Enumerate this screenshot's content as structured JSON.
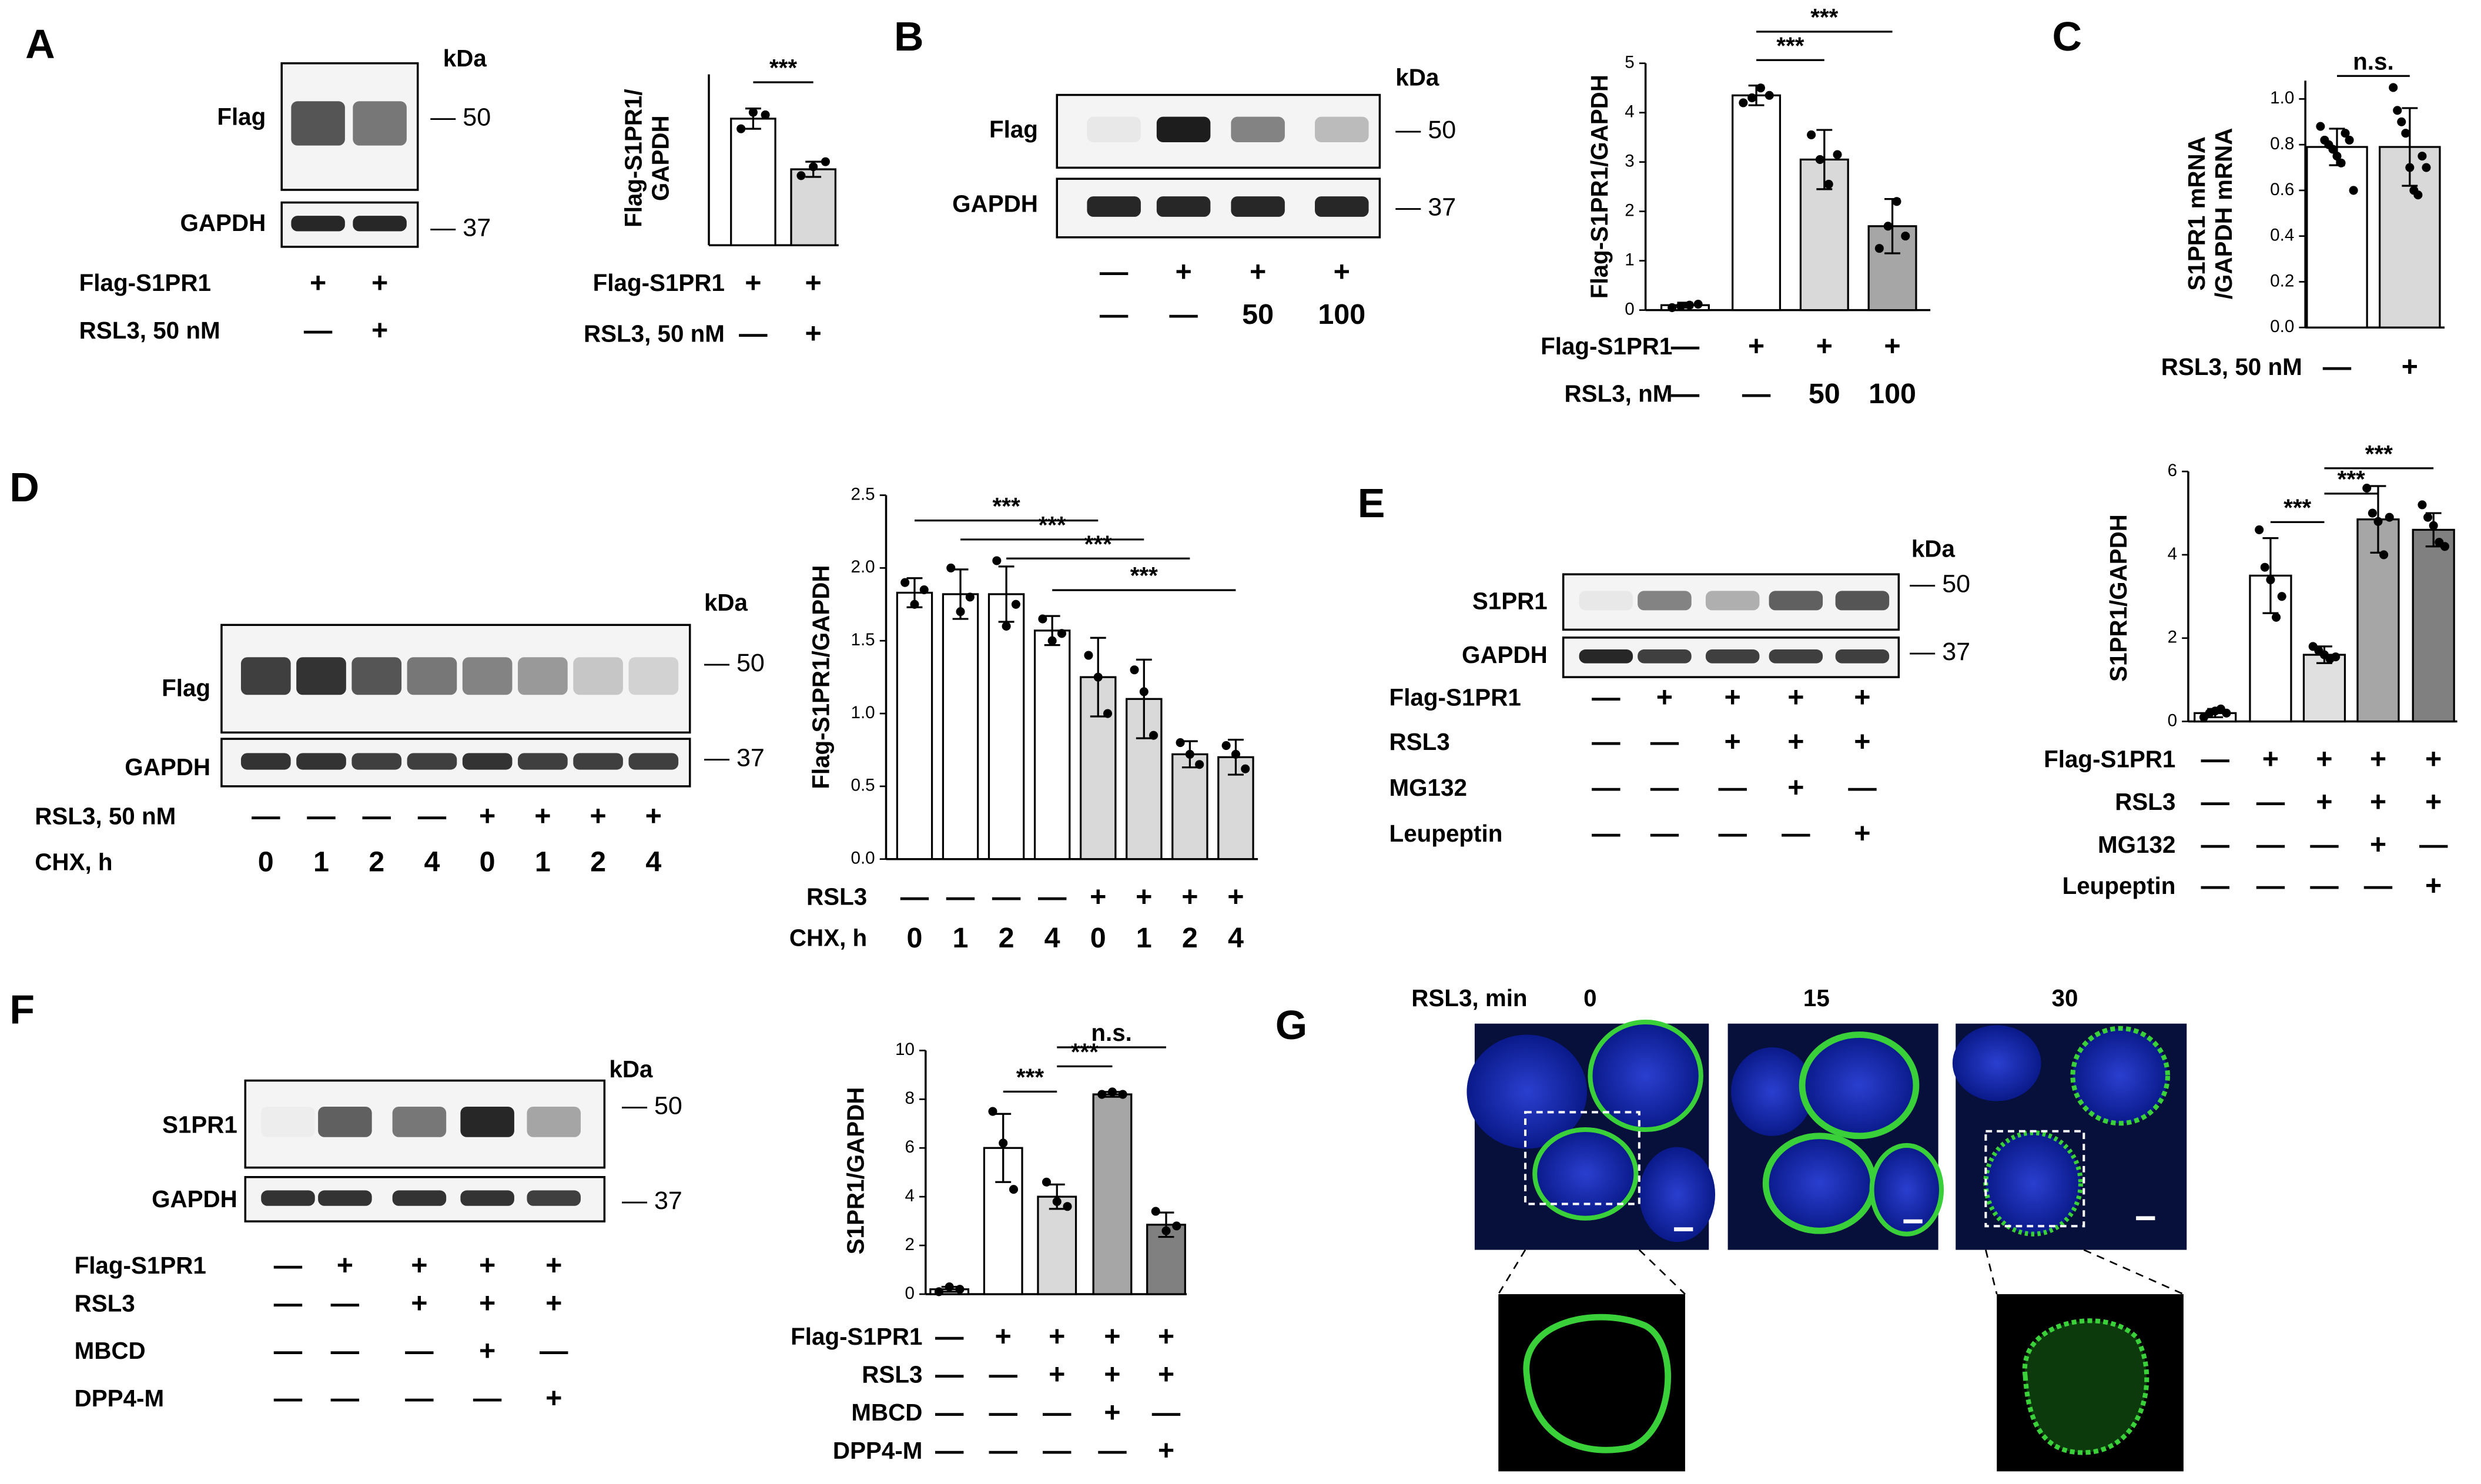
{
  "panel_letters": [
    "A",
    "B",
    "C",
    "D",
    "E",
    "F",
    "G"
  ],
  "chart_data": [
    {
      "type": "bar",
      "y_label": [
        "Flag-S1PR1/",
        "GAPDH"
      ],
      "values": [
        1.0,
        0.6
      ],
      "errors": [
        0.08,
        0.06
      ],
      "points": [
        [
          0.92,
          1.05,
          1.03
        ],
        [
          0.55,
          0.62,
          0.66
        ]
      ],
      "colors": [
        "#ffffff",
        "#d9d9d9"
      ],
      "ylim": [
        0,
        1.35
      ],
      "brackets": [
        {
          "from": 0,
          "to": 1,
          "label": "***"
        }
      ],
      "conditions": [
        {
          "label": "Flag-S1PR1",
          "marks": [
            "+",
            "+"
          ]
        },
        {
          "label": "RSL3, 50 nM",
          "marks": [
            "—",
            "+"
          ]
        }
      ]
    },
    {
      "type": "bar",
      "y_label": [
        "Flag-S1PR1/GAPDH"
      ],
      "values": [
        0.1,
        4.35,
        3.05,
        1.7
      ],
      "errors": [
        0.05,
        0.2,
        0.6,
        0.55
      ],
      "points": [
        [
          0.05,
          0.08,
          0.1,
          0.12
        ],
        [
          4.2,
          4.3,
          4.5,
          4.35
        ],
        [
          3.55,
          3.05,
          2.55,
          3.15
        ],
        [
          1.25,
          1.7,
          2.2,
          1.5
        ]
      ],
      "colors": [
        "#ffffff",
        "#ffffff",
        "#d9d9d9",
        "#a6a6a6"
      ],
      "ylim": [
        0,
        5
      ],
      "yticks": [
        0,
        1,
        2,
        3,
        4,
        5
      ],
      "brackets": [
        {
          "from": 1,
          "to": 2,
          "label": "***"
        },
        {
          "from": 1,
          "to": 3,
          "label": "***"
        }
      ],
      "conditions": [
        {
          "label": "Flag-S1PR1",
          "marks": [
            "—",
            "+",
            "+",
            "+"
          ]
        },
        {
          "label": "RSL3, nM",
          "marks": [
            "—",
            "—",
            "50",
            "100"
          ]
        }
      ]
    },
    {
      "type": "bar",
      "y_label": [
        "S1PR1 mRNA",
        "/GAPDH mRNA"
      ],
      "values": [
        0.79,
        0.79
      ],
      "errors": [
        0.08,
        0.17
      ],
      "points": [
        [
          0.88,
          0.82,
          0.8,
          0.78,
          0.75,
          0.72,
          0.85,
          0.82,
          0.6
        ],
        [
          1.05,
          0.95,
          0.9,
          0.85,
          0.7,
          0.6,
          0.58,
          0.75,
          0.7
        ]
      ],
      "colors": [
        "#ffffff",
        "#d9d9d9"
      ],
      "ylim": [
        0,
        1.08
      ],
      "yticks": [
        {
          "value": 0,
          "label": "0.0"
        },
        {
          "value": 0.2,
          "label": "0.2"
        },
        {
          "value": 0.4,
          "label": "0.4"
        },
        {
          "value": 0.6,
          "label": "0.6"
        },
        {
          "value": 0.8,
          "label": "0.8"
        },
        {
          "value": 1,
          "label": "1.0"
        }
      ],
      "brackets": [
        {
          "from": 0,
          "to": 1,
          "label": "n.s."
        }
      ],
      "conditions": [
        {
          "label": "RSL3, 50 nM",
          "marks": [
            "—",
            "+"
          ]
        }
      ]
    },
    {
      "type": "bar",
      "y_label": [
        "Flag-S1PR1/GAPDH"
      ],
      "values": [
        1.83,
        1.82,
        1.82,
        1.57,
        1.25,
        1.1,
        0.72,
        0.7
      ],
      "errors": [
        0.1,
        0.17,
        0.19,
        0.1,
        0.27,
        0.27,
        0.09,
        0.12
      ],
      "points": [
        [
          1.9,
          1.75,
          1.85
        ],
        [
          2.0,
          1.7,
          1.8
        ],
        [
          2.05,
          1.6,
          1.75
        ],
        [
          1.65,
          1.5,
          1.55
        ],
        [
          1.4,
          1.25,
          1.0
        ],
        [
          1.3,
          1.15,
          0.85
        ],
        [
          0.8,
          0.72,
          0.65
        ],
        [
          0.78,
          0.72,
          0.62
        ]
      ],
      "colors": [
        "#ffffff",
        "#ffffff",
        "#ffffff",
        "#ffffff",
        "#d9d9d9",
        "#d9d9d9",
        "#d9d9d9",
        "#d9d9d9"
      ],
      "ylim": [
        0,
        2.5
      ],
      "yticks": [
        {
          "value": 0,
          "label": "0.0"
        },
        {
          "value": 0.5,
          "label": "0.5"
        },
        {
          "value": 1,
          "label": "1.0"
        },
        {
          "value": 1.5,
          "label": "1.5"
        },
        {
          "value": 2,
          "label": "2.0"
        },
        {
          "value": 2.5,
          "label": "2.5"
        }
      ],
      "brackets": [
        {
          "from": 0,
          "to": 4,
          "label": "***"
        },
        {
          "from": 1,
          "to": 5,
          "label": "***"
        },
        {
          "from": 2,
          "to": 6,
          "label": "***"
        },
        {
          "from": 3,
          "to": 7,
          "label": "***"
        }
      ],
      "conditions": [
        {
          "label": "RSL3",
          "marks": [
            "—",
            "—",
            "—",
            "—",
            "+",
            "+",
            "+",
            "+"
          ]
        },
        {
          "label": "CHX, h",
          "marks": [
            "0",
            "1",
            "2",
            "4",
            "0",
            "1",
            "2",
            "4"
          ]
        }
      ]
    },
    {
      "type": "bar",
      "y_label": [
        "S1PR1/GAPDH"
      ],
      "values": [
        0.2,
        3.5,
        1.6,
        4.85,
        4.6
      ],
      "errors": [
        0.1,
        0.9,
        0.2,
        0.8,
        0.4
      ],
      "points": [
        [
          0.1,
          0.2,
          0.25,
          0.3,
          0.2
        ],
        [
          4.6,
          3.7,
          3.4,
          2.5,
          3.0
        ],
        [
          1.8,
          1.7,
          1.6,
          1.5,
          1.55
        ],
        [
          5.6,
          5.0,
          4.8,
          4.0,
          4.9
        ],
        [
          5.2,
          4.9,
          4.7,
          4.3,
          4.2
        ]
      ],
      "colors": [
        "#ffffff",
        "#ffffff",
        "#e0e0e0",
        "#a6a6a6",
        "#808080"
      ],
      "ylim": [
        0,
        6
      ],
      "yticks": [
        0,
        2,
        4,
        6
      ],
      "brackets": [
        {
          "from": 1,
          "to": 2,
          "label": "***"
        },
        {
          "from": 2,
          "to": 3,
          "label": "***"
        },
        {
          "from": 2,
          "to": 4,
          "label": "***"
        }
      ],
      "conditions": [
        {
          "label": "Flag-S1PR1",
          "marks": [
            "—",
            "+",
            "+",
            "+",
            "+"
          ]
        },
        {
          "label": "RSL3",
          "marks": [
            "—",
            "—",
            "+",
            "+",
            "+"
          ]
        },
        {
          "label": "MG132",
          "marks": [
            "—",
            "—",
            "—",
            "+",
            "—"
          ]
        },
        {
          "label": "Leupeptin",
          "marks": [
            "—",
            "—",
            "—",
            "—",
            "+"
          ]
        }
      ]
    },
    {
      "type": "bar",
      "y_label": [
        "S1PR1/GAPDH"
      ],
      "values": [
        0.2,
        6,
        4,
        8.2,
        2.85
      ],
      "errors": [
        0.1,
        1.4,
        0.5,
        0.1,
        0.5
      ],
      "points": [
        [
          0.1,
          0.3,
          0.2
        ],
        [
          7.5,
          6.2,
          4.3
        ],
        [
          4.6,
          3.8,
          3.6
        ],
        [
          8.2,
          8.3,
          8.2
        ],
        [
          3.4,
          2.6,
          2.8
        ]
      ],
      "colors": [
        "#ffffff",
        "#ffffff",
        "#d9d9d9",
        "#a6a6a6",
        "#808080"
      ],
      "ylim": [
        0,
        10
      ],
      "yticks": [
        0,
        2,
        4,
        6,
        8,
        10
      ],
      "brackets": [
        {
          "from": 1,
          "to": 2,
          "label": "***"
        },
        {
          "from": 2,
          "to": 3,
          "label": "***"
        },
        {
          "from": 2,
          "to": 4,
          "label": "n.s."
        }
      ],
      "conditions": [
        {
          "label": "Flag-S1PR1",
          "marks": [
            "—",
            "+",
            "+",
            "+",
            "+"
          ]
        },
        {
          "label": "RSL3",
          "marks": [
            "—",
            "—",
            "+",
            "+",
            "+"
          ]
        },
        {
          "label": "MBCD",
          "marks": [
            "—",
            "—",
            "—",
            "+",
            "—"
          ]
        },
        {
          "label": "DPP4-M",
          "marks": [
            "—",
            "—",
            "—",
            "—",
            "+"
          ]
        }
      ]
    }
  ],
  "blots": [
    {
      "kda": "kDa",
      "rows": [
        {
          "label": "Flag",
          "marker": "— 50"
        },
        {
          "label": "GAPDH",
          "marker": "— 37"
        }
      ],
      "conditions": [
        {
          "label": "Flag-S1PR1",
          "marks": [
            "+",
            "+"
          ]
        },
        {
          "label": "RSL3, 50 nM",
          "marks": [
            "—",
            "+"
          ]
        }
      ]
    },
    {
      "kda": "kDa",
      "rows": [
        {
          "label": "Flag",
          "marker": "— 50"
        },
        {
          "label": "GAPDH",
          "marker": "— 37"
        }
      ],
      "conditions": [
        {
          "marks": [
            "—",
            "+",
            "+",
            "+"
          ]
        },
        {
          "marks": [
            "—",
            "—",
            "50",
            "100"
          ]
        }
      ]
    },
    {
      "kda": "kDa",
      "rows": [
        {
          "label": "Flag",
          "marker": "— 50"
        },
        {
          "label": "GAPDH",
          "marker": "— 37"
        }
      ],
      "conditions": [
        {
          "label": "RSL3, 50 nM",
          "marks": [
            "—",
            "—",
            "—",
            "—",
            "+",
            "+",
            "+",
            "+"
          ]
        },
        {
          "label": "CHX, h",
          "marks": [
            "0",
            "1",
            "2",
            "4",
            "0",
            "1",
            "2",
            "4"
          ]
        }
      ]
    },
    {
      "kda": "kDa",
      "rows": [
        {
          "label": "S1PR1",
          "marker": "— 50"
        },
        {
          "label": "GAPDH",
          "marker": "— 37"
        }
      ],
      "conditions": [
        {
          "label": "Flag-S1PR1",
          "marks": [
            "—",
            "+",
            "+",
            "+",
            "+"
          ]
        },
        {
          "label": "RSL3",
          "marks": [
            "—",
            "—",
            "+",
            "+",
            "+"
          ]
        },
        {
          "label": "MG132",
          "marks": [
            "—",
            "—",
            "—",
            "+",
            "—"
          ]
        },
        {
          "label": "Leupeptin",
          "marks": [
            "—",
            "—",
            "—",
            "—",
            "+"
          ]
        }
      ]
    },
    {
      "kda": "kDa",
      "rows": [
        {
          "label": "S1PR1",
          "marker": "— 50"
        },
        {
          "label": "GAPDH",
          "marker": "— 37"
        }
      ],
      "conditions": [
        {
          "label": "Flag-S1PR1",
          "marks": [
            "—",
            "+",
            "+",
            "+",
            "+"
          ]
        },
        {
          "label": "RSL3",
          "marks": [
            "—",
            "—",
            "+",
            "+",
            "+"
          ]
        },
        {
          "label": "MBCD",
          "marks": [
            "—",
            "—",
            "—",
            "+",
            "—"
          ]
        },
        {
          "label": "DPP4-M",
          "marks": [
            "—",
            "—",
            "—",
            "—",
            "+"
          ]
        }
      ]
    }
  ],
  "microscopy": {
    "label": "RSL3, min",
    "timepoints": [
      "0",
      "15",
      "30"
    ]
  }
}
